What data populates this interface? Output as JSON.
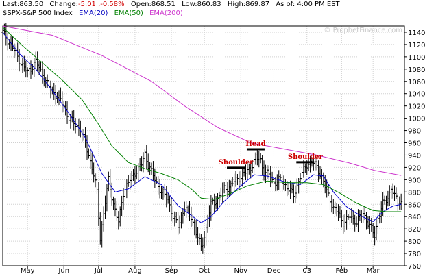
{
  "header": {
    "last_label": "Last:863.50",
    "change_label": "Change:",
    "change_value": "-5.01 ,-0.58%",
    "open": "Open:868.51",
    "low": "Low:860.83",
    "high": "High:869.87",
    "asof": "As of:  4:00 PM EST",
    "symbol": "$SPX-S&P 500 Index",
    "ema20": "EMA(20)",
    "ema50": "EMA(50)",
    "ema200": "EMA(200)"
  },
  "watermark": "© ProphetFinance.com",
  "colors": {
    "price": "#000000",
    "ema20": "#0000cc",
    "ema50": "#008000",
    "ema200": "#cc33cc",
    "annotation": "#cc0000",
    "grid": "#d0d0d0"
  },
  "chart_data": {
    "type": "line",
    "title": "$SPX-S&P 500 Index",
    "xlabel": "",
    "ylabel": "",
    "ylim": [
      760,
      1150
    ],
    "grid": true,
    "y_ticks": [
      760,
      780,
      800,
      820,
      840,
      860,
      880,
      900,
      920,
      940,
      960,
      980,
      1000,
      1020,
      1040,
      1060,
      1080,
      1100,
      1120,
      1140
    ],
    "x_tick_labels": [
      {
        "label": "May",
        "t": 15
      },
      {
        "label": "Jun",
        "t": 37
      },
      {
        "label": "Jul",
        "t": 58
      },
      {
        "label": "Aug",
        "t": 80
      },
      {
        "label": "Sep",
        "t": 102
      },
      {
        "label": "Oct",
        "t": 122
      },
      {
        "label": "Nov",
        "t": 144
      },
      {
        "label": "Dec",
        "t": 164
      },
      {
        "label": "03",
        "t": 184
      },
      {
        "label": "Feb",
        "t": 205
      },
      {
        "label": "Mar",
        "t": 224
      }
    ],
    "series": [
      {
        "name": "$SPX-S&P 500 Index",
        "kind": "price",
        "points": [
          [
            0,
            1140
          ],
          [
            6,
            1115
          ],
          [
            12,
            1085
          ],
          [
            15,
            1075
          ],
          [
            20,
            1092
          ],
          [
            24,
            1072
          ],
          [
            28,
            1050
          ],
          [
            33,
            1036
          ],
          [
            37,
            1020
          ],
          [
            40,
            1000
          ],
          [
            46,
            985
          ],
          [
            50,
            960
          ],
          [
            54,
            920
          ],
          [
            57,
            880
          ],
          [
            59,
            805
          ],
          [
            61,
            845
          ],
          [
            64,
            900
          ],
          [
            67,
            860
          ],
          [
            70,
            830
          ],
          [
            73,
            880
          ],
          [
            76,
            895
          ],
          [
            80,
            912
          ],
          [
            84,
            925
          ],
          [
            86,
            942
          ],
          [
            88,
            925
          ],
          [
            92,
            900
          ],
          [
            96,
            880
          ],
          [
            100,
            868
          ],
          [
            103,
            840
          ],
          [
            106,
            825
          ],
          [
            110,
            855
          ],
          [
            114,
            840
          ],
          [
            118,
            805
          ],
          [
            120,
            790
          ],
          [
            122,
            808
          ],
          [
            126,
            860
          ],
          [
            130,
            868
          ],
          [
            134,
            885
          ],
          [
            138,
            890
          ],
          [
            141,
            900
          ],
          [
            144,
            905
          ],
          [
            147,
            912
          ],
          [
            150,
            920
          ],
          [
            153,
            935
          ],
          [
            156,
            932
          ],
          [
            158,
            912
          ],
          [
            161,
            908
          ],
          [
            164,
            895
          ],
          [
            168,
            900
          ],
          [
            172,
            888
          ],
          [
            176,
            875
          ],
          [
            180,
            905
          ],
          [
            184,
            925
          ],
          [
            187,
            930
          ],
          [
            190,
            920
          ],
          [
            193,
            905
          ],
          [
            196,
            880
          ],
          [
            200,
            855
          ],
          [
            203,
            845
          ],
          [
            206,
            830
          ],
          [
            210,
            840
          ],
          [
            214,
            832
          ],
          [
            218,
            845
          ],
          [
            222,
            825
          ],
          [
            225,
            808
          ],
          [
            227,
            838
          ],
          [
            230,
            860
          ],
          [
            233,
            870
          ],
          [
            235,
            888
          ],
          [
            237,
            872
          ],
          [
            239,
            865
          ],
          [
            241,
            863.5
          ]
        ]
      },
      {
        "name": "EMA(20)",
        "kind": "ema20",
        "points": [
          [
            0,
            1140
          ],
          [
            10,
            1105
          ],
          [
            20,
            1080
          ],
          [
            30,
            1045
          ],
          [
            40,
            1008
          ],
          [
            50,
            968
          ],
          [
            60,
            910
          ],
          [
            68,
            880
          ],
          [
            76,
            885
          ],
          [
            86,
            905
          ],
          [
            96,
            892
          ],
          [
            106,
            858
          ],
          [
            114,
            842
          ],
          [
            120,
            830
          ],
          [
            126,
            840
          ],
          [
            134,
            865
          ],
          [
            144,
            890
          ],
          [
            152,
            908
          ],
          [
            160,
            906
          ],
          [
            170,
            897
          ],
          [
            180,
            892
          ],
          [
            188,
            908
          ],
          [
            194,
            906
          ],
          [
            200,
            880
          ],
          [
            208,
            856
          ],
          [
            216,
            842
          ],
          [
            224,
            832
          ],
          [
            230,
            848
          ],
          [
            236,
            857
          ],
          [
            241,
            860
          ]
        ]
      },
      {
        "name": "EMA(50)",
        "kind": "ema50",
        "points": [
          [
            0,
            1148
          ],
          [
            12,
            1118
          ],
          [
            24,
            1090
          ],
          [
            36,
            1062
          ],
          [
            48,
            1030
          ],
          [
            58,
            990
          ],
          [
            66,
            955
          ],
          [
            76,
            928
          ],
          [
            86,
            918
          ],
          [
            96,
            910
          ],
          [
            106,
            900
          ],
          [
            114,
            885
          ],
          [
            120,
            870
          ],
          [
            128,
            868
          ],
          [
            138,
            878
          ],
          [
            148,
            890
          ],
          [
            160,
            898
          ],
          [
            172,
            895
          ],
          [
            184,
            895
          ],
          [
            194,
            892
          ],
          [
            204,
            878
          ],
          [
            214,
            862
          ],
          [
            224,
            850
          ],
          [
            232,
            848
          ],
          [
            241,
            848
          ]
        ]
      },
      {
        "name": "EMA(200)",
        "kind": "ema200",
        "points": [
          [
            0,
            1150
          ],
          [
            30,
            1135
          ],
          [
            60,
            1102
          ],
          [
            90,
            1060
          ],
          [
            110,
            1020
          ],
          [
            130,
            985
          ],
          [
            150,
            960
          ],
          [
            170,
            950
          ],
          [
            190,
            940
          ],
          [
            210,
            927
          ],
          [
            225,
            915
          ],
          [
            241,
            907
          ]
        ]
      }
    ],
    "annotations": [
      {
        "text": "Shoulder",
        "t": 141,
        "y": 925
      },
      {
        "text": "Head",
        "t": 153,
        "y": 955
      },
      {
        "text": "Shoulder",
        "t": 183,
        "y": 934
      }
    ]
  }
}
